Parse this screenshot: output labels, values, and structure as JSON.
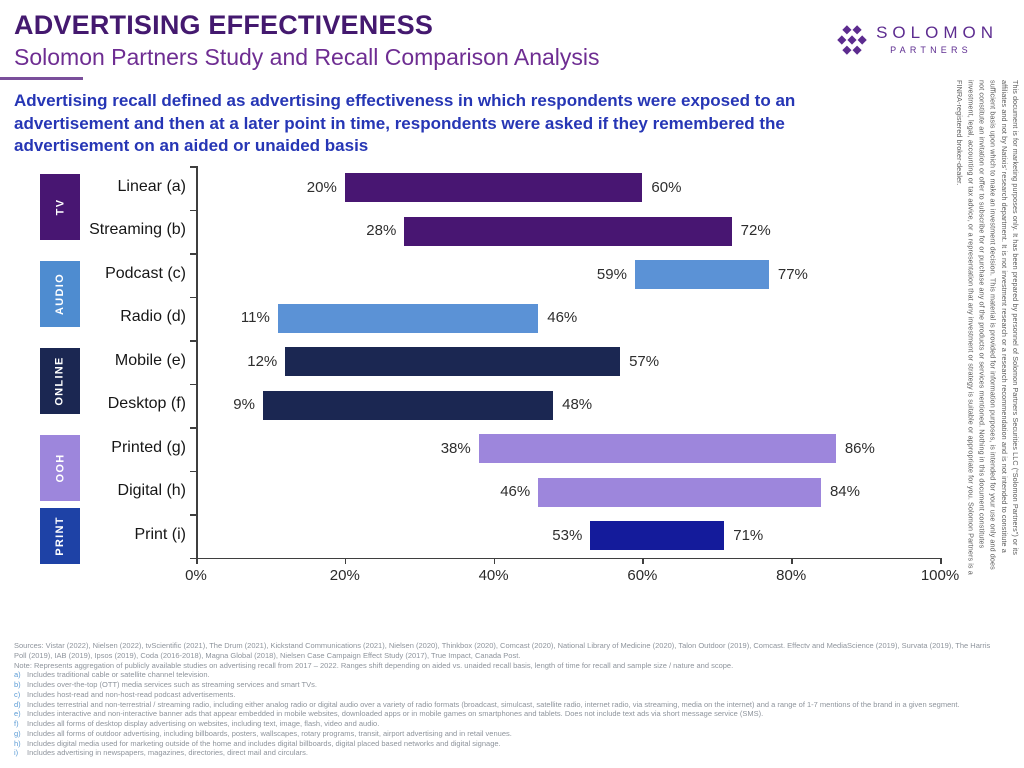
{
  "header": {
    "title": "ADVERTISING EFFECTIVENESS",
    "subtitle": "Solomon Partners Study and Recall Comparison Analysis",
    "description": "Advertising recall defined as advertising effectiveness in which respondents were exposed to an advertisement and then at a later point in time, respondents were asked if they remembered the advertisement on an aided or unaided basis",
    "logo": {
      "name": "SOLOMON",
      "sub": "PARTNERS"
    }
  },
  "side_disclaimer": "This document is for marketing purposes only. It has been prepared by personnel of Solomon Partners Securities LLC (“Solomon Partners”) or its affiliates and not by Natixis’ research department. It is not investment research or a research recommendation and is not intended to constitute a sufficient basis upon which to make an investment decision. This material is provided for information purposes, is intended for your use only and does not constitute an invitation or offer to subscribe for or purchase any of the products or services mentioned. Nothing in this document constitutes investment, legal, accounting or tax advice, or a representation that any investment or strategy is suitable or appropriate for you. Solomon Partners is a FINRA-registered broker-dealer.",
  "chart_data": {
    "type": "bar",
    "subtype": "horizontal-range-bars",
    "title": "ADVERTISING EFFECTIVENESS",
    "subtitle": "Solomon Partners Study and Recall Comparison Analysis",
    "unit": "%",
    "x_axis": {
      "min": 0,
      "max": 100,
      "ticks": [
        "0%",
        "20%",
        "40%",
        "60%",
        "80%",
        "100%"
      ]
    },
    "legend_position": "none",
    "grid": false,
    "groups": [
      {
        "label": "TV",
        "color": "#481672",
        "rows": [
          0,
          1
        ]
      },
      {
        "label": "AUDIO",
        "color": "#4e8cd0",
        "rows": [
          2,
          3
        ]
      },
      {
        "label": "ONLINE",
        "color": "#1b2752",
        "rows": [
          4,
          5
        ]
      },
      {
        "label": "OOH",
        "color": "#9d86dc",
        "rows": [
          6,
          7
        ]
      },
      {
        "label": "PRINT",
        "color": "#1e42a6",
        "rows": [
          8,
          8
        ]
      }
    ],
    "rows": [
      {
        "label": "Linear (a)",
        "group": "TV",
        "start": 20,
        "end": 60,
        "color": "#481672"
      },
      {
        "label": "Streaming (b)",
        "group": "TV",
        "start": 28,
        "end": 72,
        "color": "#481672"
      },
      {
        "label": "Podcast (c)",
        "group": "AUDIO",
        "start": 59,
        "end": 77,
        "color": "#5b92d6"
      },
      {
        "label": "Radio (d)",
        "group": "AUDIO",
        "start": 11,
        "end": 46,
        "color": "#5b92d6"
      },
      {
        "label": "Mobile (e)",
        "group": "ONLINE",
        "start": 12,
        "end": 57,
        "color": "#1b2752"
      },
      {
        "label": "Desktop (f)",
        "group": "ONLINE",
        "start": 9,
        "end": 48,
        "color": "#1b2752"
      },
      {
        "label": "Printed (g)",
        "group": "OOH",
        "start": 38,
        "end": 86,
        "color": "#9d86dc"
      },
      {
        "label": "Digital (h)",
        "group": "OOH",
        "start": 46,
        "end": 84,
        "color": "#9d86dc"
      },
      {
        "label": "Print (i)",
        "group": "PRINT",
        "start": 53,
        "end": 71,
        "color": "#141b9b"
      }
    ]
  },
  "footnotes": {
    "sources": "Sources: Vistar (2022), Nielsen (2022), tvScientific (2021), The Drum (2021), Kickstand Communications (2021), Nielsen (2020), Thinkbox (2020), Comcast (2020), National Library of Medicine (2020), Talon Outdoor (2019), Comcast. Effectv and MediaScience (2019), Survata (2019), The Harris Poll (2019), IAB (2019), Ipsos (2019), Coda (2016-2018), Magna Global (2018), Nielsen Case Campaign Effect Study (2017), True Impact, Canada Post.",
    "note": "Note: Represents aggregation of publicly available studies on advertising recall from 2017 – 2022. Ranges shift depending on aided vs. unaided recall basis, length of time for recall and sample size / nature and scope.",
    "items": [
      {
        "key": "a)",
        "text": "Includes traditional cable or satellite channel television."
      },
      {
        "key": "b)",
        "text": "Includes over-the-top (OTT) media services such as streaming services and smart TVs."
      },
      {
        "key": "c)",
        "text": "Includes host-read and non-host-read podcast advertisements."
      },
      {
        "key": "d)",
        "text": "Includes terrestrial and non-terrestrial / streaming radio, including either analog radio or digital audio over a variety of radio formats (broadcast, simulcast, satellite radio, internet radio, via streaming, media on the internet) and a range of 1-7 mentions of the brand in a given segment."
      },
      {
        "key": "e)",
        "text": "Includes interactive and non-interactive banner ads that appear embedded in mobile websites, downloaded apps or in mobile games on smartphones and tablets. Does not include text ads via short message service (SMS)."
      },
      {
        "key": "f)",
        "text": "Includes all forms of desktop display advertising on websites, including text, image, flash, video and audio."
      },
      {
        "key": "g)",
        "text": "Includes all forms of outdoor advertising, including billboards, posters, wallscapes, rotary programs, transit, airport advertising and in retail venues."
      },
      {
        "key": "h)",
        "text": "Includes digital media used for marketing outside of the home and includes digital billboards, digital placed based networks and digital signage."
      },
      {
        "key": "i)",
        "text": "Includes advertising in newspapers, magazines, directories, direct mail and circulars."
      }
    ]
  }
}
